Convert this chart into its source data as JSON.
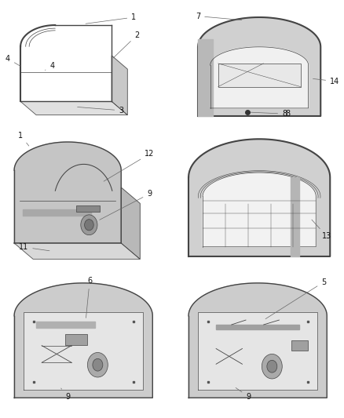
{
  "background_color": "#ffffff",
  "line_color": "#444444",
  "fig_width": 4.38,
  "fig_height": 5.33,
  "lw_main": 1.0,
  "lw_thin": 0.5
}
